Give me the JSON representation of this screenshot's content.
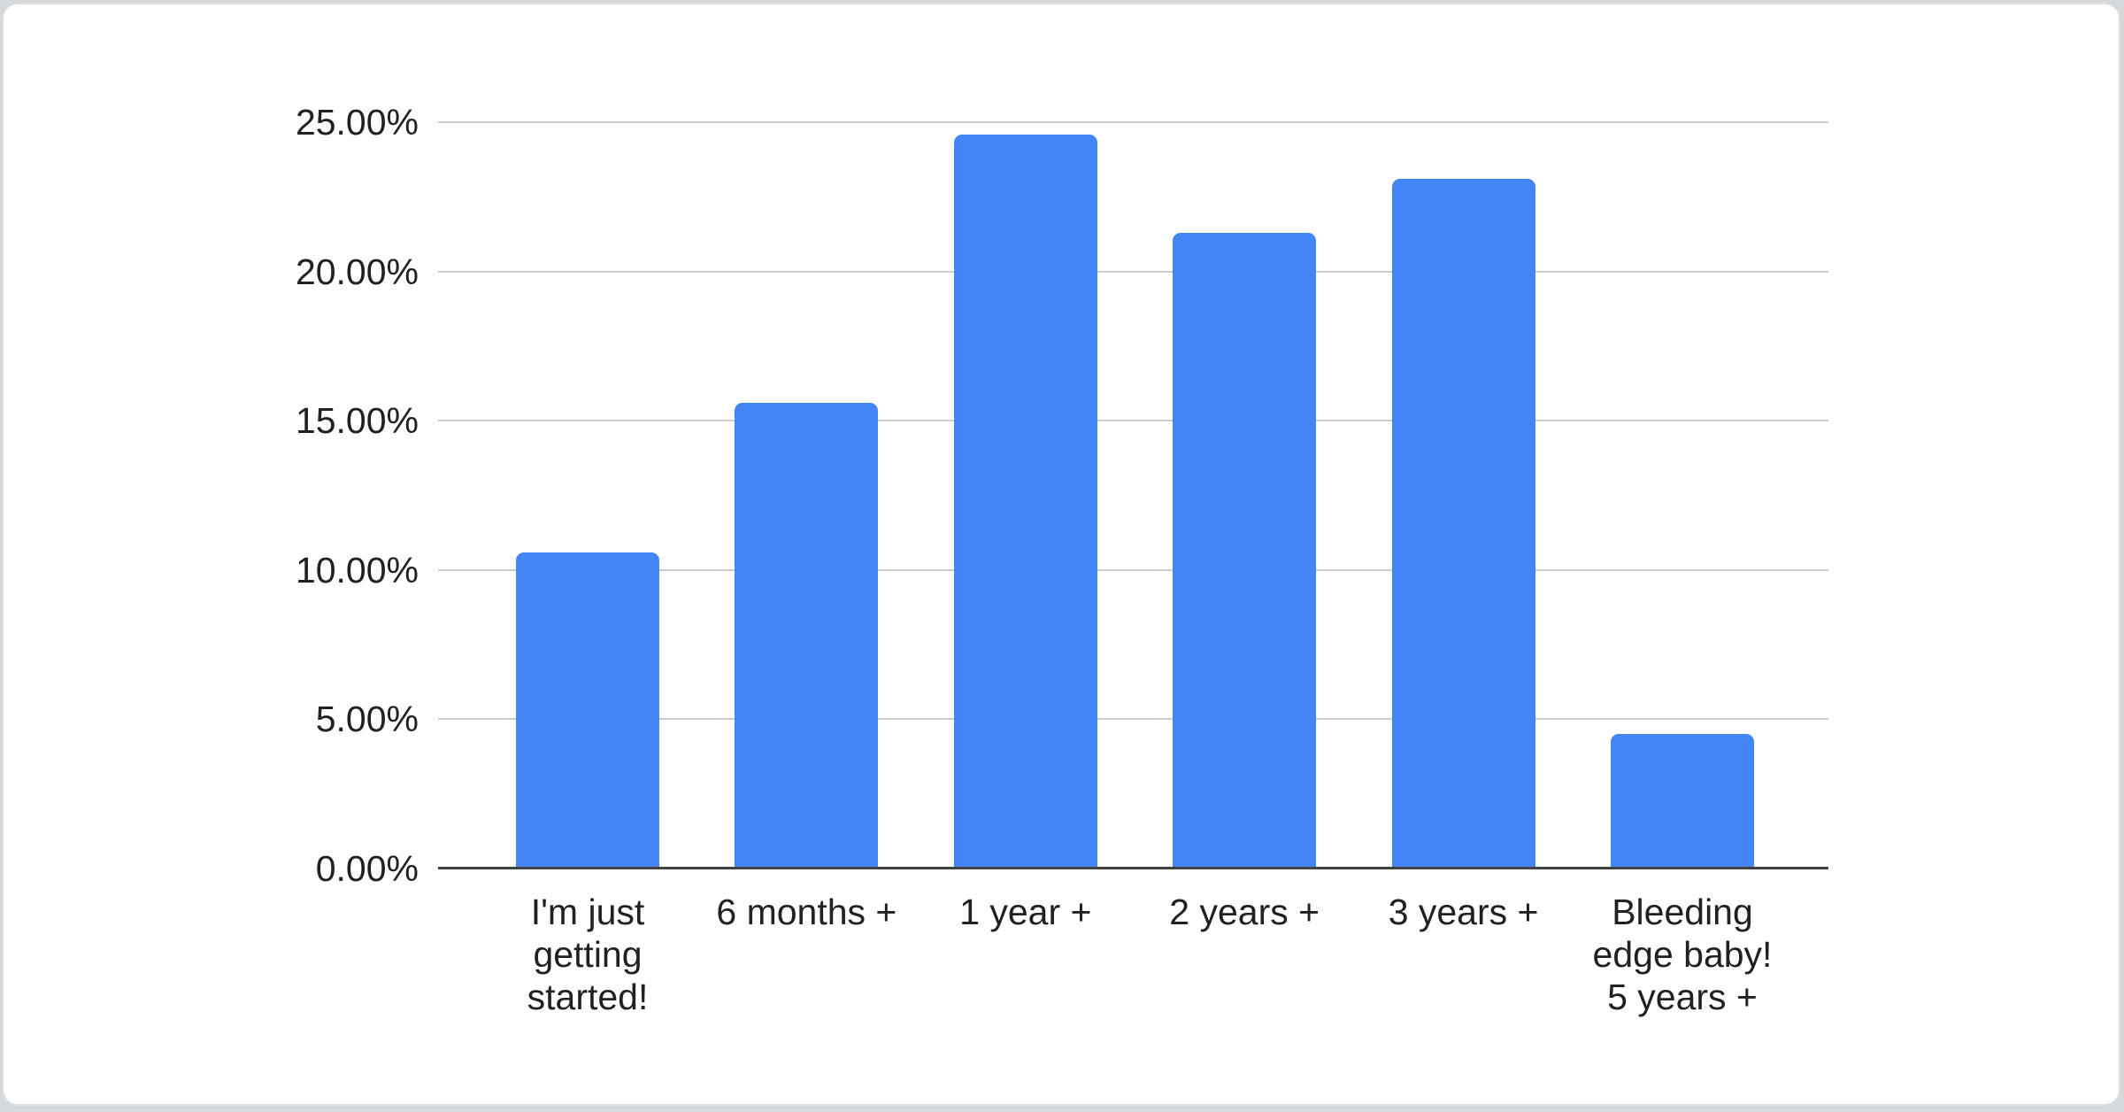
{
  "page": {
    "background_color": "#d5d8dc",
    "card_background_color": "#ffffff",
    "card_border_color": "#dcdee1"
  },
  "chart_data": {
    "type": "bar",
    "title": "",
    "categories": [
      "I'm just getting started!",
      "6 months +",
      "1 year +",
      "2 years +",
      "3 years +",
      "Bleeding edge baby! 5 years +"
    ],
    "category_lines": [
      [
        "I'm just",
        "getting",
        "started!"
      ],
      [
        "6 months +"
      ],
      [
        "1 year +"
      ],
      [
        "2 years +"
      ],
      [
        "3 years +"
      ],
      [
        "Bleeding",
        "edge baby!",
        "5 years +"
      ]
    ],
    "values": [
      10.6,
      15.6,
      24.6,
      21.3,
      23.1,
      4.5
    ],
    "value_unit": "%",
    "y_ticks": [
      {
        "value": 25,
        "label": "25.00%"
      },
      {
        "value": 20,
        "label": "20.00%"
      },
      {
        "value": 15,
        "label": "15.00%"
      },
      {
        "value": 10,
        "label": "10.00%"
      },
      {
        "value": 5,
        "label": "5.00%"
      },
      {
        "value": 0,
        "label": "0.00%"
      }
    ],
    "ylim": [
      0,
      25
    ],
    "xlabel": "",
    "ylabel": "",
    "grid": true,
    "legend": "none",
    "bar_color": "#4285f4",
    "gridline_color": "#cccccc",
    "axis_line_color": "#424242",
    "text_color": "#202124"
  }
}
